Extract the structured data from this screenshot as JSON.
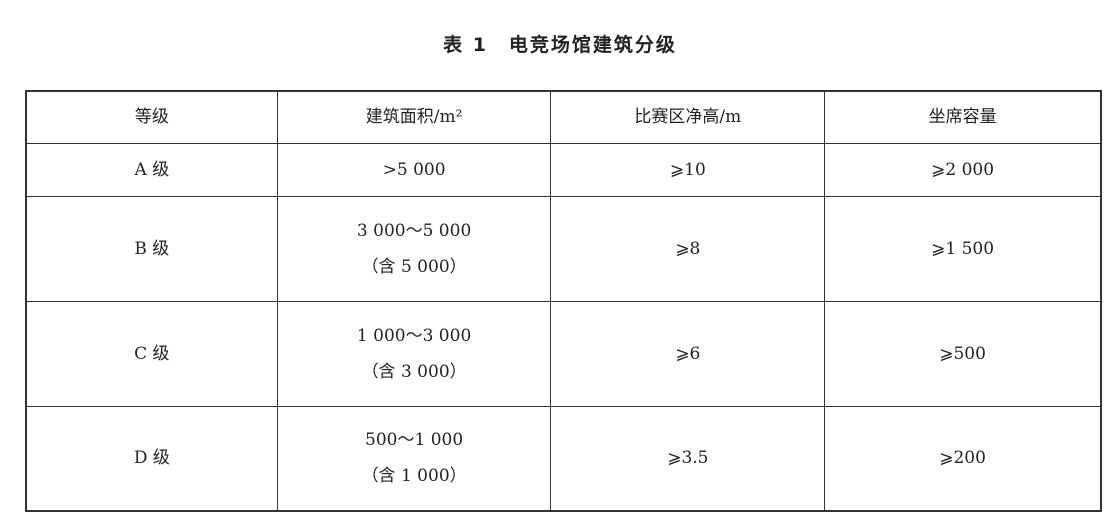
{
  "title": "表 1　电竞场馆建筑分级",
  "headers": [
    "等级",
    "建筑面积/m²",
    "比赛区净高/m",
    "坐席容量"
  ],
  "rows": [
    {
      "grade": "A 级",
      "area": ">5 000",
      "area_note": "",
      "height": "⩾10",
      "seats": "⩾2 000"
    },
    {
      "grade": "B 级",
      "area": "3 000～5 000",
      "area_note": "（含 5 000）",
      "height": "⩾8",
      "seats": "⩾1 500"
    },
    {
      "grade": "C 级",
      "area": "1 000～3 000",
      "area_note": "（含 3 000）",
      "height": "⩾6",
      "seats": "⩾500"
    },
    {
      "grade": "D 级",
      "area": "500～1 000",
      "area_note": "（含 1 000）",
      "height": "⩾3.5",
      "seats": "⩾200"
    }
  ]
}
